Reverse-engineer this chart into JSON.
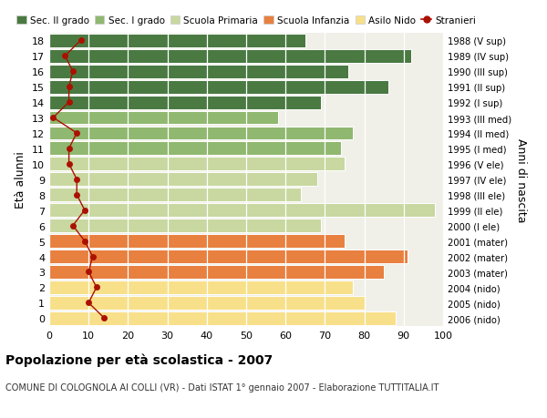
{
  "ages": [
    0,
    1,
    2,
    3,
    4,
    5,
    6,
    7,
    8,
    9,
    10,
    11,
    12,
    13,
    14,
    15,
    16,
    17,
    18
  ],
  "bar_values": [
    88,
    80,
    77,
    85,
    91,
    75,
    69,
    98,
    64,
    68,
    75,
    74,
    77,
    58,
    69,
    86,
    76,
    92,
    65
  ],
  "stranieri": [
    14,
    10,
    12,
    10,
    11,
    9,
    6,
    9,
    7,
    7,
    5,
    5,
    7,
    1,
    5,
    5,
    6,
    4,
    8
  ],
  "right_labels": [
    "2006 (nido)",
    "2005 (nido)",
    "2004 (nido)",
    "2003 (mater)",
    "2002 (mater)",
    "2001 (mater)",
    "2000 (I ele)",
    "1999 (II ele)",
    "1998 (III ele)",
    "1997 (IV ele)",
    "1996 (V ele)",
    "1995 (I med)",
    "1994 (II med)",
    "1993 (III med)",
    "1992 (I sup)",
    "1991 (II sup)",
    "1990 (III sup)",
    "1989 (IV sup)",
    "1988 (V sup)"
  ],
  "bar_colors": [
    "#f8e08a",
    "#f8e08a",
    "#f8e08a",
    "#e88040",
    "#e88040",
    "#e88040",
    "#c8d8a0",
    "#c8d8a0",
    "#c8d8a0",
    "#c8d8a0",
    "#c8d8a0",
    "#90b870",
    "#90b870",
    "#90b870",
    "#4a7a42",
    "#4a7a42",
    "#4a7a42",
    "#4a7a42",
    "#4a7a42"
  ],
  "legend_labels": [
    "Sec. II grado",
    "Sec. I grado",
    "Scuola Primaria",
    "Scuola Infanzia",
    "Asilo Nido",
    "Stranieri"
  ],
  "legend_colors": [
    "#4a7a42",
    "#90b870",
    "#c8d8a0",
    "#e88040",
    "#f8e08a",
    "#aa1100"
  ],
  "ylabel_left": "Età alunni",
  "ylabel_right": "Anni di nascita",
  "title": "Popolazione per età scolastica - 2007",
  "subtitle": "COMUNE DI COLOGNOLA AI COLLI (VR) - Dati ISTAT 1° gennaio 2007 - Elaborazione TUTTITALIA.IT",
  "xlim": [
    0,
    100
  ],
  "background_color": "#f0f0e8",
  "stranieri_color": "#aa1100",
  "bar_edge_color": "#ffffff"
}
